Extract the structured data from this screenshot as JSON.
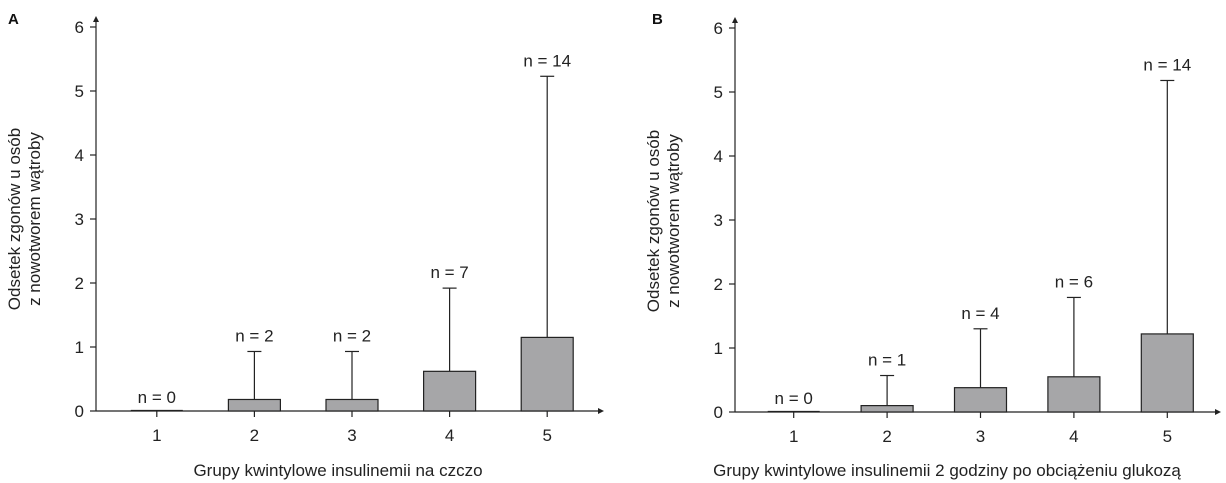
{
  "colors": {
    "bar_fill": "#a6a6a8",
    "axis": "#222222",
    "background": "#ffffff"
  },
  "chart_data": [
    {
      "panel": "A",
      "type": "bar",
      "categories": [
        "1",
        "2",
        "3",
        "4",
        "5"
      ],
      "values": [
        0,
        0.18,
        0.18,
        0.62,
        1.15
      ],
      "error_upper": [
        0,
        0.93,
        0.93,
        1.92,
        5.23
      ],
      "data_labels": [
        "n = 0",
        "n = 2",
        "n = 2",
        "n = 7",
        "n = 14"
      ],
      "xlabel": "Grupy kwintylowe insulinemii na czczo",
      "ylabel": [
        "Odsetek zgonów u osób",
        "z nowotworem wątroby"
      ],
      "ylim": [
        0,
        6
      ],
      "yticks": [
        0,
        1,
        2,
        3,
        4,
        5,
        6
      ],
      "grid": false
    },
    {
      "panel": "B",
      "type": "bar",
      "categories": [
        "1",
        "2",
        "3",
        "4",
        "5"
      ],
      "values": [
        0,
        0.1,
        0.38,
        0.55,
        1.22
      ],
      "error_upper": [
        0,
        0.57,
        1.3,
        1.79,
        5.18
      ],
      "data_labels": [
        "n = 0",
        "n = 1",
        "n = 4",
        "n = 6",
        "n = 14"
      ],
      "xlabel": "Grupy kwintylowe insulinemii 2 godziny po obciążeniu glukozą",
      "ylabel": [
        "Odsetek zgonów u osób",
        "z nowotworem wątroby"
      ],
      "ylim": [
        0,
        6
      ],
      "yticks": [
        0,
        1,
        2,
        3,
        4,
        5,
        6
      ],
      "grid": false
    }
  ]
}
